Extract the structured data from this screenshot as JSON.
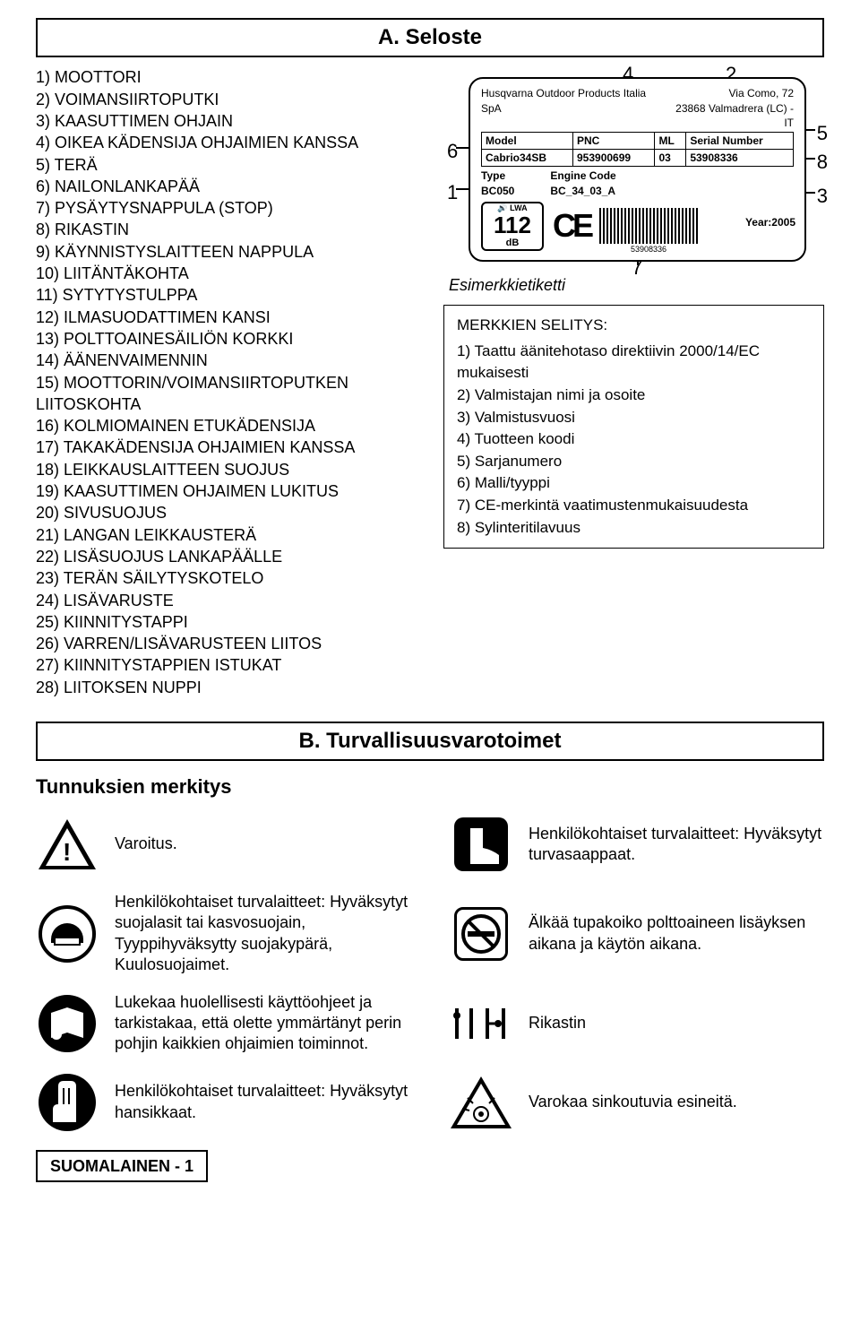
{
  "sectionA": {
    "title": "A. Seloste",
    "parts": [
      "1) MOOTTORI",
      "2) VOIMANSIIRTOPUTKI",
      "3) KAASUTTIMEN OHJAIN",
      "4) OIKEA KÄDENSIJA OHJAIMIEN KANSSA",
      "5) TERÄ",
      "6) NAILONLANKAPÄÄ",
      "7) PYSÄYTYSNAPPULA (STOP)",
      "8) RIKASTIN",
      "9) KÄYNNISTYSLAITTEEN NAPPULA",
      "10) LIITÄNTÄKOHTA",
      "11) SYTYTYSTULPPA",
      "12) ILMASUODATTIMEN KANSI",
      "13) POLTTOAINESÄILIÖN KORKKI",
      "14) ÄÄNENVAIMENNIN",
      "15) MOOTTORIN/VOIMANSIIRTOPUTKEN LIITOSKOHTA",
      "16) KOLMIOMAINEN ETUKÄDENSIJA",
      "17) TAKAKÄDENSIJA OHJAIMIEN KANSSA",
      "18) LEIKKAUSLAITTEEN SUOJUS",
      "19) KAASUTTIMEN OHJAIMEN LUKITUS",
      "20) SIVUSUOJUS",
      "21) LANGAN LEIKKAUSTERÄ",
      "22) LISÄSUOJUS LANKAPÄÄLLE",
      "23) TERÄN SÄILYTYSKOTELO",
      "24) LISÄVARUSTE",
      "25) KIINNITYSTAPPI",
      "26) VARREN/LISÄVARUSTEEN LIITOS",
      "27) KIINNITYSTAPPIEN ISTUKAT",
      "28) LIITOKSEN NUPPI"
    ],
    "label": {
      "mfr": "Husqvarna Outdoor Products Italia SpA",
      "addr": "Via Como, 72\n23868 Valmadrera (LC) - IT",
      "hdr_model": "Model",
      "hdr_pnc": "PNC",
      "hdr_ml": "ML",
      "hdr_serial": "Serial Number",
      "model": "Cabrio34SB",
      "pnc": "953900699",
      "ml": "03",
      "serial": "53908336",
      "type_hdr": "Type",
      "type": "BC050",
      "engine_hdr": "Engine Code",
      "engine": "BC_34_03_A",
      "lwa_label": "LWA",
      "lwa_value": "112",
      "lwa_unit": "dB",
      "year_label": "Year:",
      "year": "2005",
      "barcode_num": "53908336",
      "callouts": {
        "c1": "1",
        "c2": "2",
        "c3": "3",
        "c4": "4",
        "c5": "5",
        "c6": "6",
        "c7": "7",
        "c8": "8"
      }
    },
    "example_caption": "Esimerkkietiketti",
    "marks": {
      "header": "MERKKIEN SELITYS:",
      "items": [
        "1) Taattu äänitehotaso direktiivin 2000/14/EC mukaisesti",
        "2) Valmistajan nimi ja osoite",
        "3) Valmistusvuosi",
        "4) Tuotteen koodi",
        "5) Sarjanumero",
        "6) Malli/tyyppi",
        "7) CE-merkintä vaatimustenmukaisuudesta",
        "8) Sylinteritilavuus"
      ]
    }
  },
  "sectionB": {
    "title": "B. Turvallisuusvarotoimet",
    "subhead": "Tunnuksien merkitys",
    "rows": [
      {
        "left": "Varoitus.",
        "right": "Henkilökohtaiset turvalaitteet: Hyväksytyt turvasaappaat."
      },
      {
        "left": "Henkilökohtaiset turvalaitteet: Hyväksytyt suojalasit tai kasvosuojain, Tyyppihyväksytty suojakypärä, Kuulosuojaimet.",
        "right": "Älkää tupakoiko polttoaineen lisäyksen aikana ja käytön aikana."
      },
      {
        "left": "Lukekaa huolellisesti käyttöohjeet ja tarkistakaa, että olette ymmärtänyt perin pohjin kaikkien ohjaimien toiminnot.",
        "right": "Rikastin"
      },
      {
        "left": "Henkilökohtaiset turvalaitteet: Hyväksytyt hansikkaat.",
        "right": "Varokaa sinkoutuvia esineitä."
      }
    ]
  },
  "footer": "SUOMALAINEN - 1",
  "colors": {
    "ink": "#000000",
    "paper": "#ffffff"
  }
}
